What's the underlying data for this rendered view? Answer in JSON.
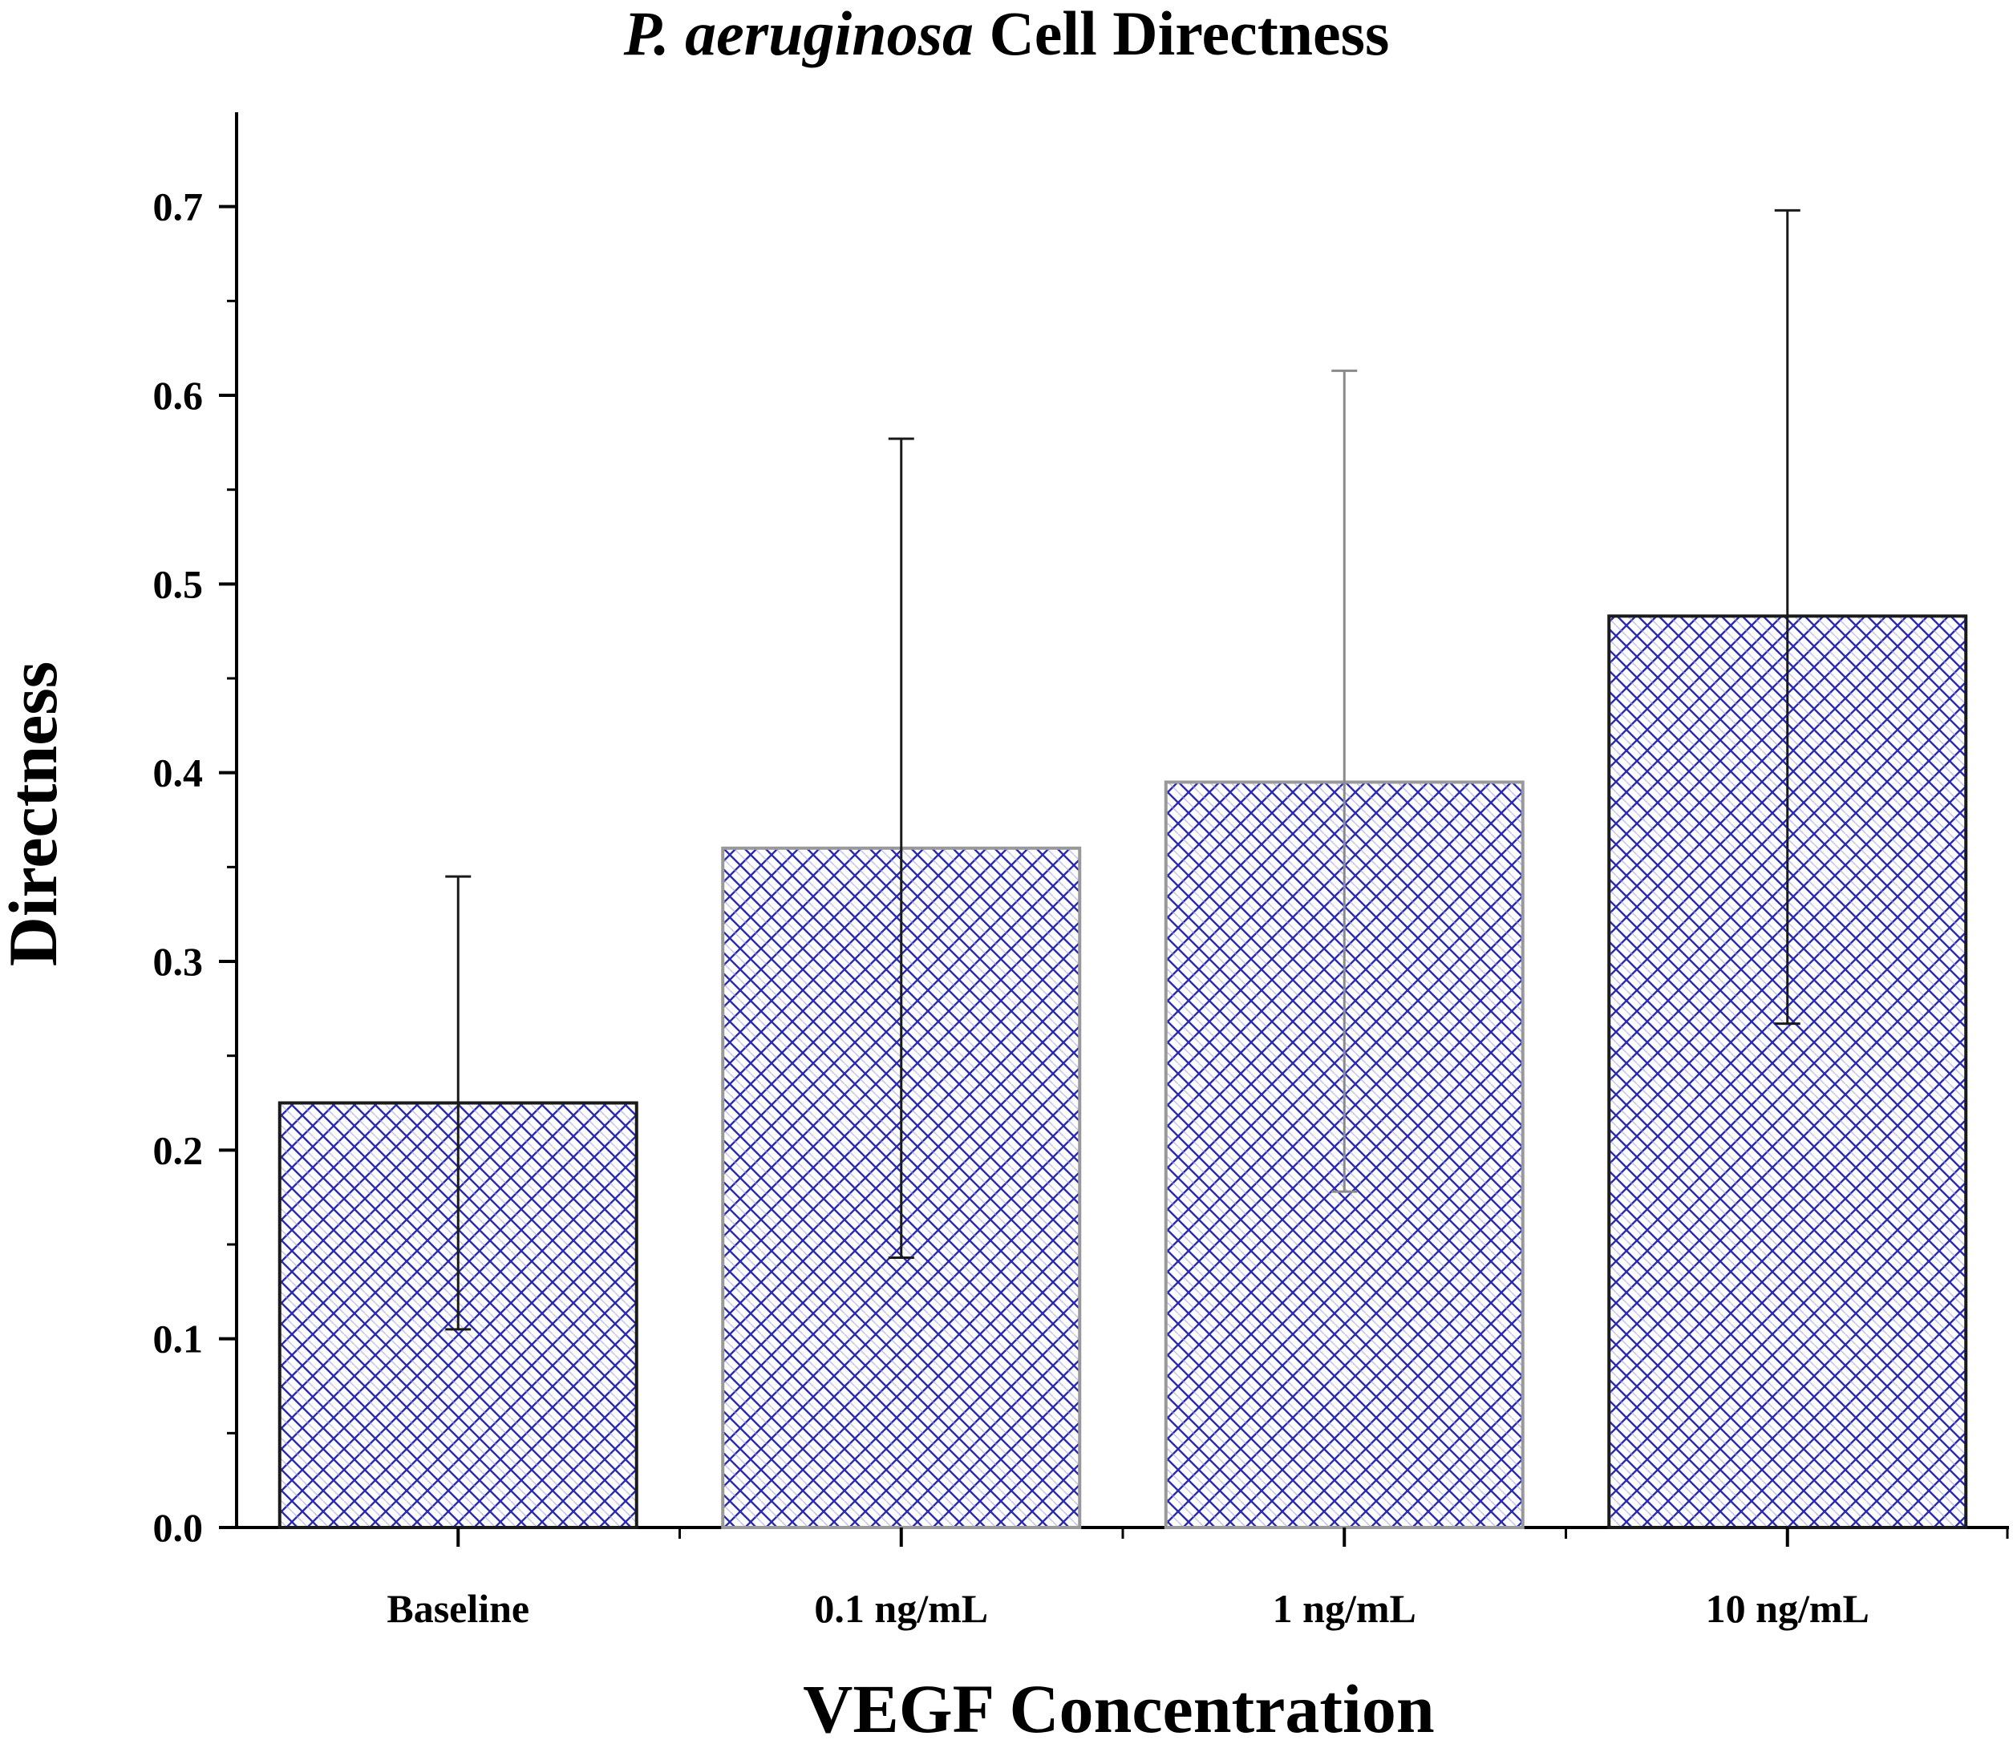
{
  "chart_data": {
    "type": "bar",
    "title": {
      "italic_part": "P. aeruginosa",
      "rest": " Cell Directness"
    },
    "xlabel": "VEGF Concentration",
    "ylabel": "Directness",
    "categories": [
      "Baseline",
      "0.1 ng/mL",
      "1 ng/mL",
      "10 ng/mL"
    ],
    "values": [
      0.225,
      0.36,
      0.395,
      0.483
    ],
    "error_upper": [
      0.345,
      0.577,
      0.613,
      0.698
    ],
    "error_lower": [
      0.105,
      0.143,
      0.178,
      0.267
    ],
    "ylim": [
      0.0,
      0.75
    ],
    "yticks": [
      0.0,
      0.1,
      0.2,
      0.3,
      0.4,
      0.5,
      0.6,
      0.7
    ],
    "ytick_labels": [
      "0.0",
      "0.1",
      "0.2",
      "0.3",
      "0.4",
      "0.5",
      "0.6",
      "0.7"
    ],
    "grid": false,
    "fill_pattern": "crosshatch",
    "colors": {
      "hatch_dark": "#2b2bb0",
      "hatch_light": "#9a9ad8",
      "bar_border_dark": "#1a1a1a",
      "bar_border_light": "#999999"
    }
  }
}
